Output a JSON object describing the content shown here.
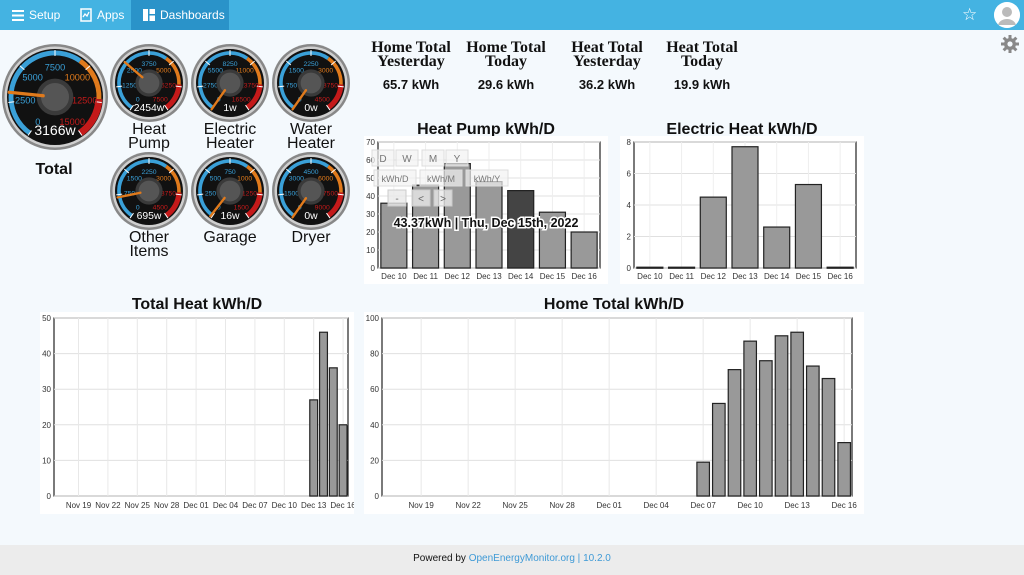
{
  "nav": {
    "setup_label": "Setup",
    "apps_label": "Apps",
    "dashboards_label": "Dashboards"
  },
  "gauges": [
    {
      "id": "total",
      "label_lines": [
        "Total"
      ],
      "value_text": "3166w",
      "ticks": [
        "2500",
        "5000",
        "7500",
        "10000",
        "12500",
        "15000",
        "0"
      ],
      "needle_fraction": 0.21
    },
    {
      "id": "heat-pump",
      "label_lines": [
        "Heat",
        "Pump"
      ],
      "value_text": "2454w",
      "ticks": [
        "1250",
        "2500",
        "3750",
        "5000",
        "6250",
        "7500",
        "0"
      ],
      "needle_fraction": 0.33
    },
    {
      "id": "electric-heater",
      "label_lines": [
        "Electric",
        "Heater"
      ],
      "value_text": "1w",
      "ticks": [
        "2750",
        "5500",
        "8250",
        "11000",
        "13750",
        "16500",
        "0"
      ],
      "needle_fraction": 0.0
    },
    {
      "id": "water-heater",
      "label_lines": [
        "Water",
        "Heater"
      ],
      "value_text": "0w",
      "ticks": [
        "750",
        "1500",
        "2250",
        "3000",
        "3750",
        "4500",
        "0"
      ],
      "needle_fraction": 0.0
    },
    {
      "id": "other-items",
      "label_lines": [
        "Other",
        "Items"
      ],
      "value_text": "695w",
      "ticks": [
        "750",
        "1500",
        "2250",
        "3000",
        "3750",
        "4500",
        "0"
      ],
      "needle_fraction": 0.15
    },
    {
      "id": "garage",
      "label_lines": [
        "Garage"
      ],
      "value_text": "16w",
      "ticks": [
        "250",
        "500",
        "750",
        "1000",
        "1250",
        "1500",
        "0"
      ],
      "needle_fraction": 0.01
    },
    {
      "id": "dryer",
      "label_lines": [
        "Dryer"
      ],
      "value_text": "0w",
      "ticks": [
        "1500",
        "3000",
        "4500",
        "6000",
        "7500",
        "9000",
        "0"
      ],
      "needle_fraction": 0.0
    }
  ],
  "stats": [
    {
      "title": [
        "Home Total",
        "Yesterday"
      ],
      "value": "65.7 kWh"
    },
    {
      "title": [
        "Home Total",
        "Today"
      ],
      "value": "29.6 kWh"
    },
    {
      "title": [
        "Heat Total",
        "Yesterday"
      ],
      "value": "36.2 kWh"
    },
    {
      "title": [
        "Heat Total",
        "Today"
      ],
      "value": "19.9 kWh"
    }
  ],
  "heatpump_controls": {
    "buttons": [
      "D",
      "W",
      "M",
      "Y"
    ],
    "units": [
      "kWh/D",
      "kWh/M",
      "kWh/Y"
    ],
    "nav": [
      "-",
      "<",
      ">"
    ],
    "tooltip": "43.37kWh | Thu, Dec 15th, 2022"
  },
  "chart_data": [
    {
      "type": "bar",
      "title": "Heat Pump kWh/D",
      "categories": [
        "Dec 10",
        "Dec 11",
        "Dec 12",
        "Dec 13",
        "Dec 14",
        "Dec 15",
        "Dec 16"
      ],
      "values": [
        36,
        46,
        58,
        48,
        43,
        31,
        20
      ],
      "highlight_index": 4,
      "ylim": [
        0,
        70
      ],
      "yticks": [
        0,
        10,
        20,
        30,
        40,
        50,
        60,
        70
      ],
      "xlabel": "",
      "ylabel": "",
      "grid": true
    },
    {
      "type": "bar",
      "title": "Electric Heat kWh/D",
      "categories": [
        "Dec 10",
        "Dec 11",
        "Dec 12",
        "Dec 13",
        "Dec 14",
        "Dec 15",
        "Dec 16"
      ],
      "values": [
        0.05,
        0.05,
        4.5,
        7.7,
        2.6,
        5.3,
        0.05
      ],
      "ylim": [
        0,
        8
      ],
      "yticks": [
        0,
        2,
        4,
        6,
        8
      ],
      "xlabel": "",
      "ylabel": "",
      "grid": true
    },
    {
      "type": "bar",
      "title": "Total Heat kWh/D",
      "x_start": "Nov 17",
      "x_end": "Dec 16",
      "xtick_labels": [
        "Nov 19",
        "Nov 22",
        "Nov 25",
        "Nov 28",
        "Dec 01",
        "Dec 04",
        "Dec 07",
        "Dec 10",
        "Dec 13",
        "Dec 16"
      ],
      "bars": [
        {
          "x": "Dec 13",
          "value": 27
        },
        {
          "x": "Dec 14",
          "value": 46
        },
        {
          "x": "Dec 15",
          "value": 36
        },
        {
          "x": "Dec 16",
          "value": 20
        }
      ],
      "ylim": [
        0,
        50
      ],
      "yticks": [
        0,
        10,
        20,
        30,
        40,
        50
      ],
      "xlabel": "",
      "ylabel": "",
      "grid": true
    },
    {
      "type": "bar",
      "title": "Home Total kWh/D",
      "x_start": "Nov 17",
      "x_end": "Dec 16",
      "xtick_labels": [
        "Nov 19",
        "Nov 22",
        "Nov 25",
        "Nov 28",
        "Dec 01",
        "Dec 04",
        "Dec 07",
        "Dec 10",
        "Dec 13",
        "Dec 16"
      ],
      "bars": [
        {
          "x": "Dec 07",
          "value": 19
        },
        {
          "x": "Dec 08",
          "value": 52
        },
        {
          "x": "Dec 09",
          "value": 71
        },
        {
          "x": "Dec 10",
          "value": 87
        },
        {
          "x": "Dec 11",
          "value": 76
        },
        {
          "x": "Dec 12",
          "value": 90
        },
        {
          "x": "Dec 13",
          "value": 92
        },
        {
          "x": "Dec 14",
          "value": 73
        },
        {
          "x": "Dec 15",
          "value": 66
        },
        {
          "x": "Dec 16",
          "value": 30
        }
      ],
      "ylim": [
        0,
        100
      ],
      "yticks": [
        0,
        20,
        40,
        60,
        80,
        100
      ],
      "xlabel": "",
      "ylabel": "",
      "grid": true
    }
  ],
  "footer": {
    "prefix": "Powered by",
    "link_text": "OpenEnergyMonitor.org",
    "separator": "|",
    "version": "10.2.0"
  }
}
